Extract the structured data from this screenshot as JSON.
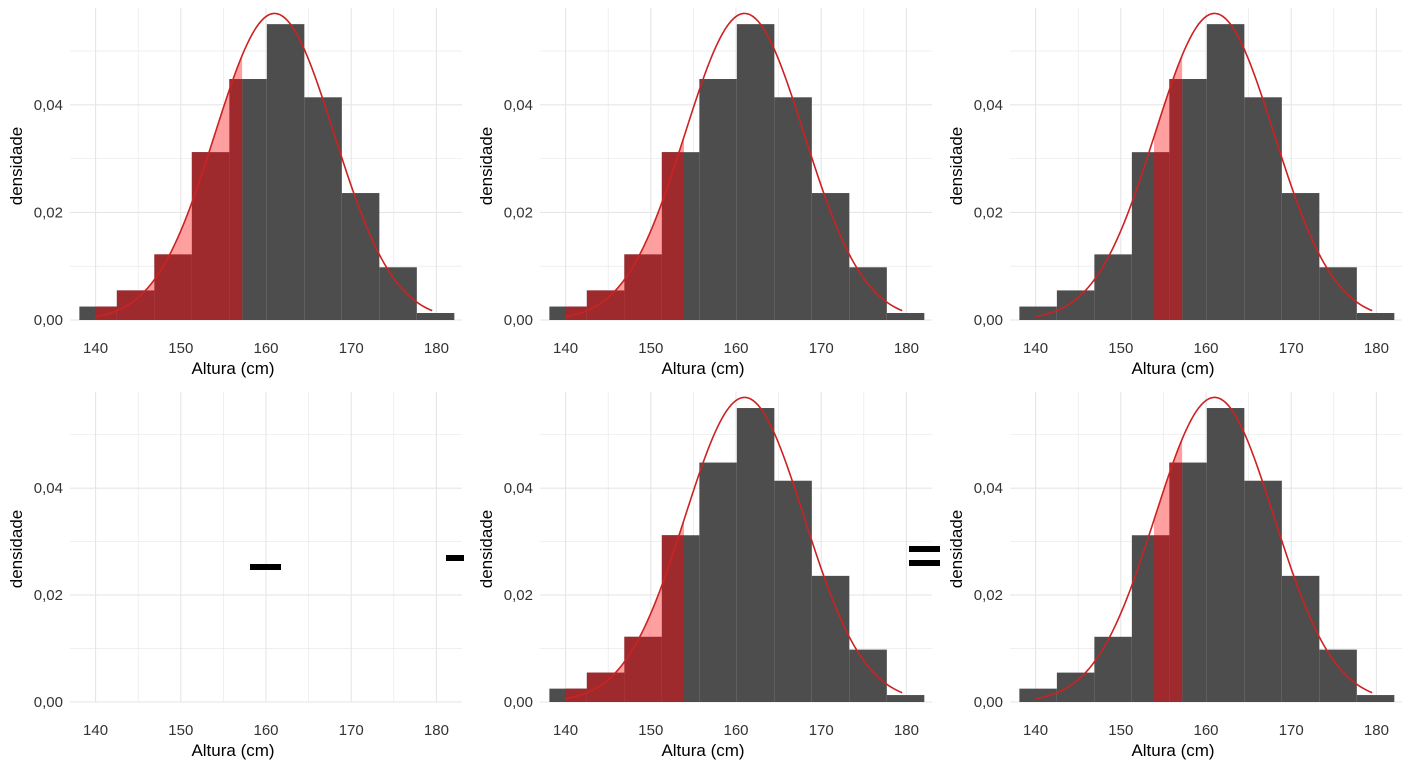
{
  "theme": {
    "bar_color": "#4d4d4d",
    "shade_light_color": "#ff8f8f",
    "shade_dark_color": "#9e2a2e",
    "curve_color": "#cc2222",
    "grid_color": "#e6e6e6",
    "text_color": "#000000"
  },
  "operators": [
    {
      "symbol": "-",
      "name": "minus"
    },
    {
      "symbol": "-",
      "name": "minus"
    },
    {
      "symbol": "=",
      "name": "equals"
    }
  ],
  "chart_data": [
    {
      "type": "bar",
      "histogram": true,
      "title": "",
      "xlabel": "Altura (cm)",
      "ylabel": "densidade",
      "xlim": [
        137,
        183
      ],
      "ylim": [
        0,
        0.058
      ],
      "x_ticks": [
        140,
        150,
        160,
        170,
        180
      ],
      "y_ticks": [
        0,
        0.02,
        0.04
      ],
      "y_tick_labels": [
        "0,00",
        "0,02",
        "0,04"
      ],
      "bins": [
        [
          138.1,
          142.5
        ],
        [
          142.5,
          146.9
        ],
        [
          146.9,
          151.3
        ],
        [
          151.3,
          155.7
        ],
        [
          155.7,
          160.1
        ],
        [
          160.1,
          164.5
        ],
        [
          164.5,
          168.9
        ],
        [
          168.9,
          173.3
        ],
        [
          173.3,
          177.7
        ],
        [
          177.7,
          182.1
        ]
      ],
      "values": [
        0.0025,
        0.0055,
        0.0122,
        0.0312,
        0.0448,
        0.055,
        0.0414,
        0.0236,
        0.0098,
        0.0013
      ],
      "normal_curve": {
        "mean": 161,
        "sd": 7,
        "x_range": [
          140,
          179.5
        ]
      },
      "shaded_region": {
        "to": 157.2
      },
      "grid": true,
      "legend": "none"
    },
    {
      "type": "bar",
      "histogram": true,
      "title": "",
      "xlabel": "Altura (cm)",
      "ylabel": "densidade",
      "xlim": [
        137,
        183
      ],
      "ylim": [
        0,
        0.058
      ],
      "x_ticks": [
        140,
        150,
        160,
        170,
        180
      ],
      "y_ticks": [
        0,
        0.02,
        0.04
      ],
      "y_tick_labels": [
        "0,00",
        "0,02",
        "0,04"
      ],
      "bins": [
        [
          138.1,
          142.5
        ],
        [
          142.5,
          146.9
        ],
        [
          146.9,
          151.3
        ],
        [
          151.3,
          155.7
        ],
        [
          155.7,
          160.1
        ],
        [
          160.1,
          164.5
        ],
        [
          164.5,
          168.9
        ],
        [
          168.9,
          173.3
        ],
        [
          173.3,
          177.7
        ],
        [
          177.7,
          182.1
        ]
      ],
      "values": [
        0.0025,
        0.0055,
        0.0122,
        0.0312,
        0.0448,
        0.055,
        0.0414,
        0.0236,
        0.0098,
        0.0013
      ],
      "normal_curve": {
        "mean": 161,
        "sd": 7,
        "x_range": [
          140,
          179.5
        ]
      },
      "shaded_region": {
        "to": 153.9
      },
      "grid": true,
      "legend": "none"
    },
    {
      "type": "bar",
      "histogram": true,
      "title": "",
      "xlabel": "Altura (cm)",
      "ylabel": "densidade",
      "xlim": [
        137,
        183
      ],
      "ylim": [
        0,
        0.058
      ],
      "x_ticks": [
        140,
        150,
        160,
        170,
        180
      ],
      "y_ticks": [
        0,
        0.02,
        0.04
      ],
      "y_tick_labels": [
        "0,00",
        "0,02",
        "0,04"
      ],
      "bins": [
        [
          138.1,
          142.5
        ],
        [
          142.5,
          146.9
        ],
        [
          146.9,
          151.3
        ],
        [
          151.3,
          155.7
        ],
        [
          155.7,
          160.1
        ],
        [
          160.1,
          164.5
        ],
        [
          164.5,
          168.9
        ],
        [
          168.9,
          173.3
        ],
        [
          173.3,
          177.7
        ],
        [
          177.7,
          182.1
        ]
      ],
      "values": [
        0.0025,
        0.0055,
        0.0122,
        0.0312,
        0.0448,
        0.055,
        0.0414,
        0.0236,
        0.0098,
        0.0013
      ],
      "normal_curve": {
        "mean": 161,
        "sd": 7,
        "x_range": [
          140,
          179.5
        ]
      },
      "shaded_region": {
        "from": 153.9,
        "to": 157.2
      },
      "grid": true,
      "legend": "none"
    },
    {
      "type": "bar",
      "histogram": true,
      "title": "",
      "xlabel": "Altura (cm)",
      "ylabel": "densidade",
      "xlim": [
        137,
        183
      ],
      "ylim": [
        0,
        0.058
      ],
      "x_ticks": [
        140,
        150,
        160,
        170,
        180
      ],
      "y_ticks": [
        0,
        0.02,
        0.04
      ],
      "y_tick_labels": [
        "0,00",
        "0,02",
        "0,04"
      ],
      "bins": [],
      "values": [],
      "grid": true,
      "legend": "none"
    },
    {
      "type": "bar",
      "histogram": true,
      "title": "",
      "xlabel": "Altura (cm)",
      "ylabel": "densidade",
      "xlim": [
        137,
        183
      ],
      "ylim": [
        0,
        0.058
      ],
      "x_ticks": [
        140,
        150,
        160,
        170,
        180
      ],
      "y_ticks": [
        0,
        0.02,
        0.04
      ],
      "y_tick_labels": [
        "0,00",
        "0,02",
        "0,04"
      ],
      "bins": [
        [
          138.1,
          142.5
        ],
        [
          142.5,
          146.9
        ],
        [
          146.9,
          151.3
        ],
        [
          151.3,
          155.7
        ],
        [
          155.7,
          160.1
        ],
        [
          160.1,
          164.5
        ],
        [
          164.5,
          168.9
        ],
        [
          168.9,
          173.3
        ],
        [
          173.3,
          177.7
        ],
        [
          177.7,
          182.1
        ]
      ],
      "values": [
        0.0025,
        0.0055,
        0.0122,
        0.0312,
        0.0448,
        0.055,
        0.0414,
        0.0236,
        0.0098,
        0.0013
      ],
      "normal_curve": {
        "mean": 161,
        "sd": 7,
        "x_range": [
          140,
          179.5
        ]
      },
      "shaded_region": {
        "to": 153.9
      },
      "grid": true,
      "legend": "none"
    },
    {
      "type": "bar",
      "histogram": true,
      "title": "",
      "xlabel": "Altura (cm)",
      "ylabel": "densidade",
      "xlim": [
        137,
        183
      ],
      "ylim": [
        0,
        0.058
      ],
      "x_ticks": [
        140,
        150,
        160,
        170,
        180
      ],
      "y_ticks": [
        0,
        0.02,
        0.04
      ],
      "y_tick_labels": [
        "0,00",
        "0,02",
        "0,04"
      ],
      "bins": [
        [
          138.1,
          142.5
        ],
        [
          142.5,
          146.9
        ],
        [
          146.9,
          151.3
        ],
        [
          151.3,
          155.7
        ],
        [
          155.7,
          160.1
        ],
        [
          160.1,
          164.5
        ],
        [
          164.5,
          168.9
        ],
        [
          168.9,
          173.3
        ],
        [
          173.3,
          177.7
        ],
        [
          177.7,
          182.1
        ]
      ],
      "values": [
        0.0025,
        0.0055,
        0.0122,
        0.0312,
        0.0448,
        0.055,
        0.0414,
        0.0236,
        0.0098,
        0.0013
      ],
      "normal_curve": {
        "mean": 161,
        "sd": 7,
        "x_range": [
          140,
          179.5
        ]
      },
      "shaded_region": {
        "from": 153.9,
        "to": 157.2
      },
      "grid": true,
      "legend": "none"
    }
  ]
}
